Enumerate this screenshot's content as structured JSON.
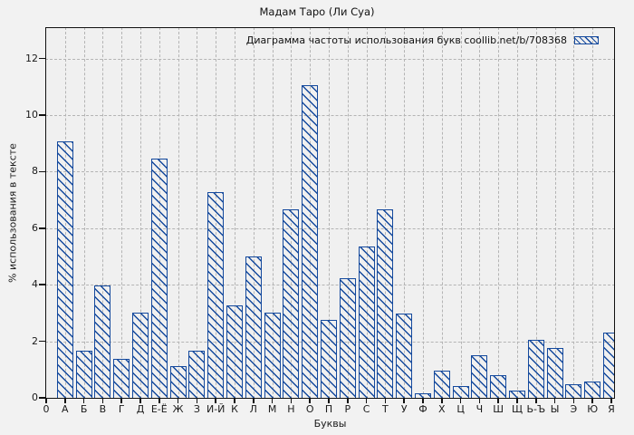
{
  "title": "Мадам Таро (Ли Суа)",
  "chart_data": {
    "type": "bar",
    "title": "Мадам Таро (Ли Суа)",
    "legend": "Диаграмма частоты использования букв coollib.net/b/708368",
    "legend_position": "top-right",
    "xlabel": "Буквы",
    "ylabel": "% использования в тексте",
    "origin_tick_label": "0",
    "categories": [
      "А",
      "Б",
      "В",
      "Г",
      "Д",
      "Е-Ё",
      "Ж",
      "З",
      "И-Й",
      "К",
      "Л",
      "М",
      "Н",
      "О",
      "П",
      "Р",
      "С",
      "Т",
      "У",
      "Ф",
      "Х",
      "Ц",
      "Ч",
      "Ш",
      "Щ",
      "Ь-Ъ",
      "Ы",
      "Э",
      "Ю",
      "Я"
    ],
    "values": [
      9.05,
      1.65,
      3.95,
      1.35,
      3.0,
      8.45,
      1.1,
      1.65,
      7.25,
      3.25,
      5.0,
      3.0,
      6.65,
      11.05,
      2.75,
      4.2,
      5.35,
      6.65,
      2.95,
      0.15,
      0.95,
      0.4,
      1.5,
      0.8,
      0.25,
      2.05,
      1.75,
      0.45,
      0.55,
      2.3
    ],
    "yticks": [
      0,
      2,
      4,
      6,
      8,
      10,
      12
    ],
    "ylim": [
      0,
      13.1
    ],
    "grid": true,
    "bar_fill": "hatched-diagonal",
    "colors": {
      "bar": "#14499d",
      "grid": "#b4b4b4",
      "axis": "#111111",
      "background": "#f2f2f2",
      "plot_background": "#f0f0f0"
    }
  }
}
